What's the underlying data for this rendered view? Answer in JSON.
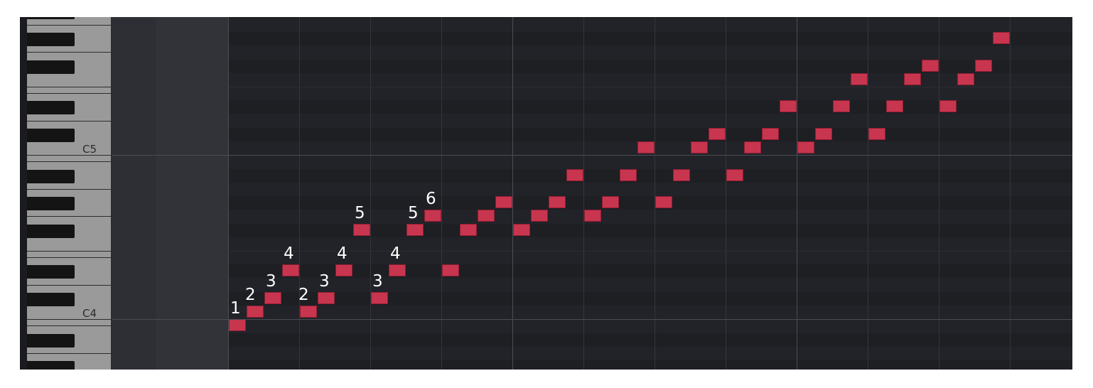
{
  "piano_roll": {
    "key_labels": {
      "c5": "C5",
      "c4": "C4"
    },
    "notes": [
      {
        "beat": 0,
        "pitch": 59,
        "finger": "1"
      },
      {
        "beat": 0.25,
        "pitch": 60,
        "finger": "2"
      },
      {
        "beat": 0.5,
        "pitch": 61,
        "finger": "3"
      },
      {
        "beat": 0.75,
        "pitch": 63,
        "finger": "4"
      },
      {
        "beat": 1,
        "pitch": 60,
        "finger": "2"
      },
      {
        "beat": 1.25,
        "pitch": 61,
        "finger": "3"
      },
      {
        "beat": 1.5,
        "pitch": 63,
        "finger": "4"
      },
      {
        "beat": 1.75,
        "pitch": 66,
        "finger": "5"
      },
      {
        "beat": 2,
        "pitch": 61,
        "finger": "3"
      },
      {
        "beat": 2.25,
        "pitch": 63,
        "finger": "4"
      },
      {
        "beat": 2.5,
        "pitch": 66,
        "finger": "5"
      },
      {
        "beat": 2.75,
        "pitch": 67,
        "finger": "6"
      },
      {
        "beat": 3,
        "pitch": 63
      },
      {
        "beat": 3.25,
        "pitch": 66
      },
      {
        "beat": 3.5,
        "pitch": 67
      },
      {
        "beat": 3.75,
        "pitch": 68
      },
      {
        "beat": 4,
        "pitch": 66
      },
      {
        "beat": 4.25,
        "pitch": 67
      },
      {
        "beat": 4.5,
        "pitch": 68
      },
      {
        "beat": 4.75,
        "pitch": 70
      },
      {
        "beat": 5,
        "pitch": 67
      },
      {
        "beat": 5.25,
        "pitch": 68
      },
      {
        "beat": 5.5,
        "pitch": 70
      },
      {
        "beat": 5.75,
        "pitch": 72
      },
      {
        "beat": 6,
        "pitch": 68
      },
      {
        "beat": 6.25,
        "pitch": 70
      },
      {
        "beat": 6.5,
        "pitch": 72
      },
      {
        "beat": 6.75,
        "pitch": 73
      },
      {
        "beat": 7,
        "pitch": 70
      },
      {
        "beat": 7.25,
        "pitch": 72
      },
      {
        "beat": 7.5,
        "pitch": 73
      },
      {
        "beat": 7.75,
        "pitch": 75
      },
      {
        "beat": 8,
        "pitch": 72
      },
      {
        "beat": 8.25,
        "pitch": 73
      },
      {
        "beat": 8.5,
        "pitch": 75
      },
      {
        "beat": 8.75,
        "pitch": 77
      },
      {
        "beat": 9,
        "pitch": 73
      },
      {
        "beat": 9.25,
        "pitch": 75
      },
      {
        "beat": 9.5,
        "pitch": 77
      },
      {
        "beat": 9.75,
        "pitch": 78
      },
      {
        "beat": 10,
        "pitch": 75
      },
      {
        "beat": 10.25,
        "pitch": 77
      },
      {
        "beat": 10.5,
        "pitch": 78
      },
      {
        "beat": 10.75,
        "pitch": 80
      }
    ],
    "colors": {
      "note_fill": "#c8354f",
      "note_border": "#8e1e33",
      "grid_background": "#222328",
      "white_key": "#9a9a9a",
      "black_key": "#141414"
    }
  }
}
